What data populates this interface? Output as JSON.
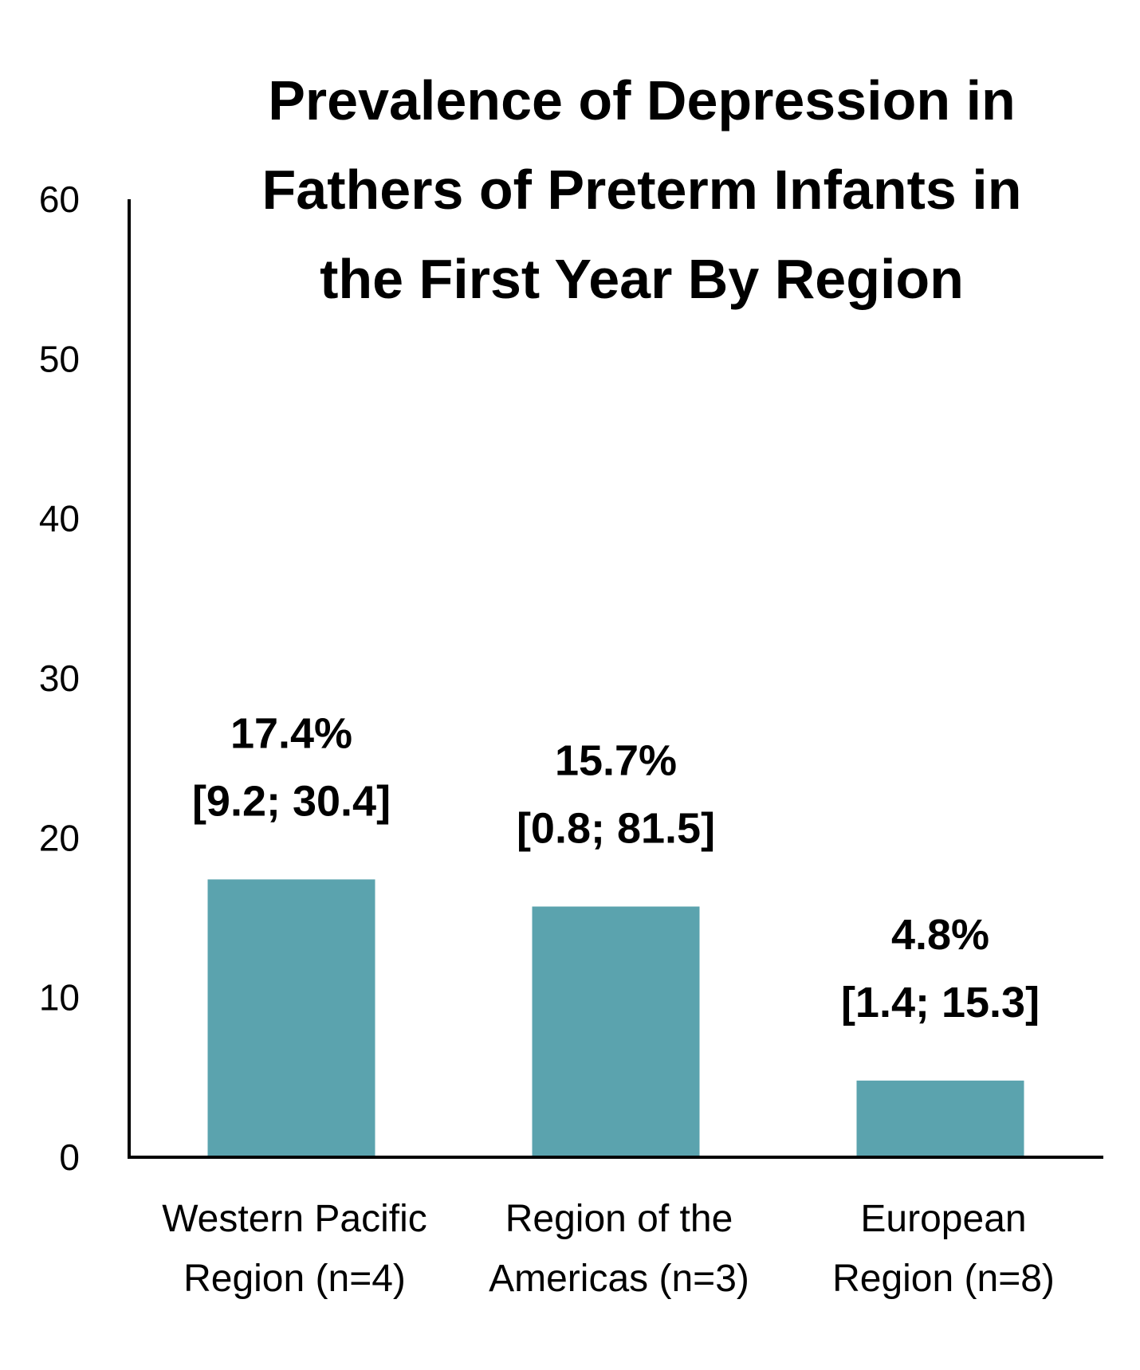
{
  "chart_data": {
    "type": "bar",
    "title": [
      "Prevalence of Depression in",
      "Fathers of Preterm Infants in",
      "the First Year By Region"
    ],
    "xlabel": "",
    "ylabel": "",
    "ylim": [
      0,
      60
    ],
    "yticks": [
      "0",
      "10",
      "20",
      "30",
      "40",
      "50",
      "60"
    ],
    "grid": false,
    "categories": [
      [
        "Western Pacific",
        "Region (n=4)"
      ],
      [
        "Region of the",
        "Americas (n=3)"
      ],
      [
        "European",
        "Region (n=8)"
      ]
    ],
    "values": [
      17.4,
      15.7,
      4.8
    ],
    "data_labels": [
      [
        "17.4%",
        "[9.2; 30.4]"
      ],
      [
        "15.7%",
        "[0.8; 81.5]"
      ],
      [
        "4.8%",
        "[1.4; 15.3]"
      ]
    ],
    "bar_color": "#5ba3ae",
    "axis_color": "#000000"
  }
}
